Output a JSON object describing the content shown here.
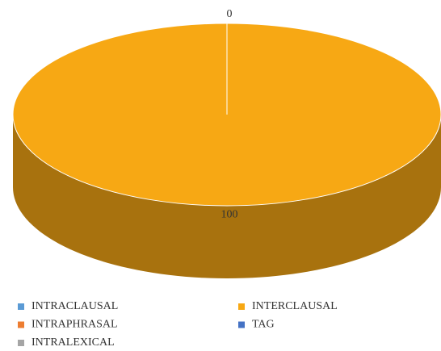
{
  "chart_data": {
    "type": "pie3d",
    "categories": [
      "INTRACLAUSAL",
      "INTERCLAUSAL",
      "INTRAPHRASAL",
      "TAG",
      "INTRALEXICAL"
    ],
    "values": [
      0,
      100,
      0,
      0,
      0
    ],
    "value_labels": [
      "0",
      "100",
      null,
      null,
      null
    ],
    "colors": [
      "#5b9bd5",
      "#f7a814",
      "#ed7d31",
      "#4472c4",
      "#a5a5a5"
    ],
    "legend": "bottom"
  }
}
